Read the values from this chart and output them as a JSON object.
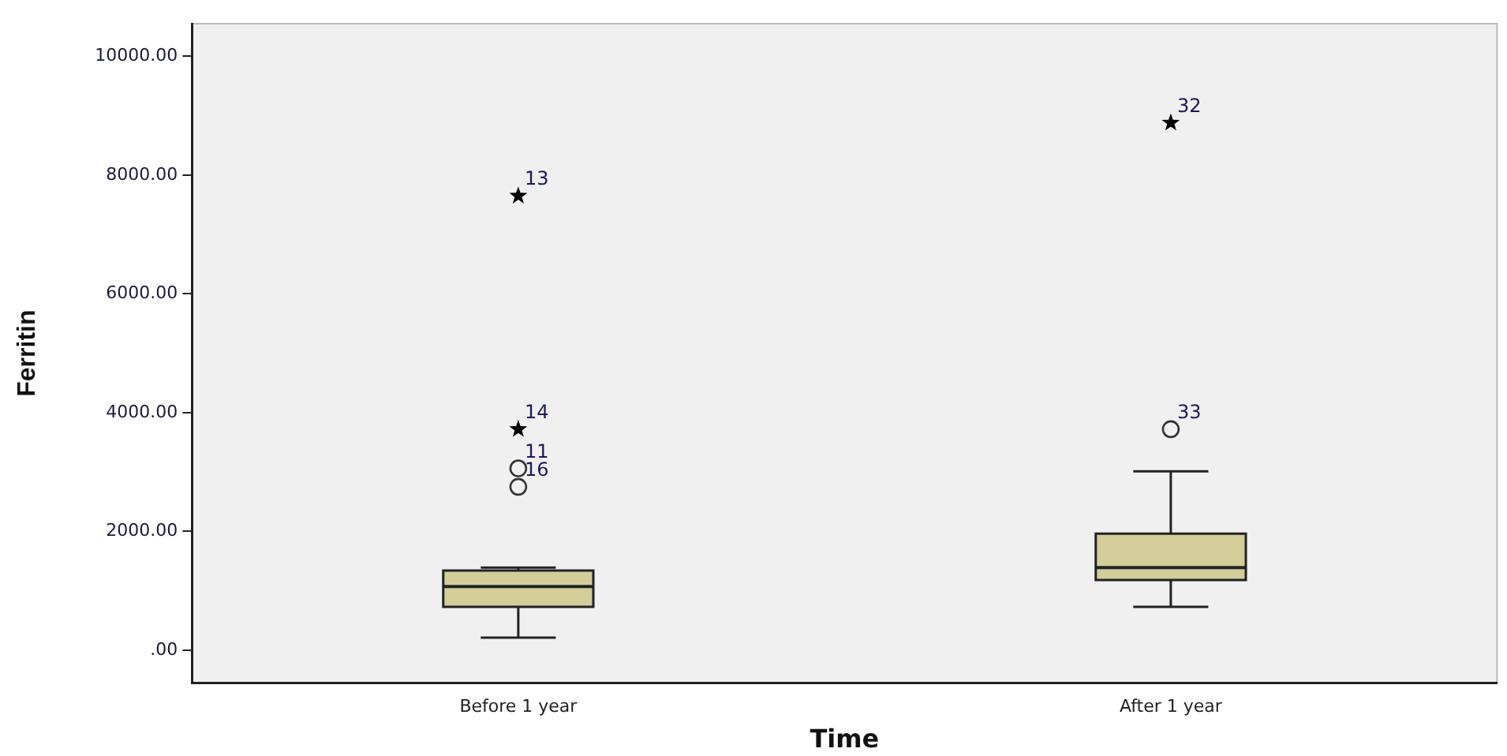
{
  "chart_data": {
    "type": "box",
    "xlabel": "Time",
    "ylabel": "Ferritin",
    "categories": [
      "Before 1 year",
      "After 1 year"
    ],
    "ylim": [
      -550,
      10550
    ],
    "yticks": [
      {
        "value": 0,
        "label": ".00"
      },
      {
        "value": 2000,
        "label": "2000.00"
      },
      {
        "value": 4000,
        "label": "4000.00"
      },
      {
        "value": 6000,
        "label": "6000.00"
      },
      {
        "value": 8000,
        "label": "8000.00"
      },
      {
        "value": 10000,
        "label": "10000.00"
      }
    ],
    "grid": false,
    "legend": false,
    "series": [
      {
        "color": "#d3cd9a",
        "boxes": [
          {
            "low": 210,
            "q1": 730,
            "median": 1070,
            "q3": 1340,
            "high": 1390
          },
          {
            "low": 730,
            "q1": 1180,
            "median": 1390,
            "q3": 1960,
            "high": 3010
          }
        ]
      },
      {
        "type": "scatter",
        "color": "#333333",
        "marker": "circle",
        "x": [
          "Before 1 year",
          "Before 1 year",
          "After 1 year"
        ],
        "values": [
          3060,
          2750,
          3720
        ]
      },
      {
        "type": "scatter",
        "color": "#000000",
        "marker": "star",
        "x": [
          "Before 1 year",
          "Before 1 year",
          "After 1 year"
        ],
        "values": [
          7650,
          3720,
          8880
        ]
      }
    ],
    "annotations": [
      {
        "text": "13",
        "x": "Before 1 year",
        "y": 7650
      },
      {
        "text": "14",
        "x": "Before 1 year",
        "y": 3720
      },
      {
        "text": "11",
        "x": "Before 1 year",
        "y": 3060
      },
      {
        "text": "16",
        "x": "Before 1 year",
        "y": 2750
      },
      {
        "text": "32",
        "x": "After 1 year",
        "y": 8880
      },
      {
        "text": "33",
        "x": "After 1 year",
        "y": 3720
      }
    ]
  }
}
